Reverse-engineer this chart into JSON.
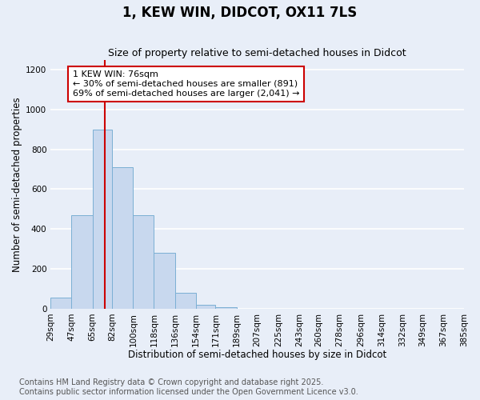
{
  "title": "1, KEW WIN, DIDCOT, OX11 7LS",
  "subtitle": "Size of property relative to semi-detached houses in Didcot",
  "xlabel": "Distribution of semi-detached houses by size in Didcot",
  "ylabel": "Number of semi-detached properties",
  "bar_labels": [
    "29sqm",
    "47sqm",
    "65sqm",
    "82sqm",
    "100sqm",
    "118sqm",
    "136sqm",
    "154sqm",
    "171sqm",
    "189sqm",
    "207sqm",
    "225sqm",
    "243sqm",
    "260sqm",
    "278sqm",
    "296sqm",
    "314sqm",
    "332sqm",
    "349sqm",
    "367sqm",
    "385sqm"
  ],
  "bar_values": [
    55,
    470,
    900,
    710,
    470,
    280,
    80,
    18,
    8,
    0,
    0,
    0,
    0,
    0,
    0,
    0,
    0,
    0,
    0,
    0,
    0
  ],
  "bar_color": "#c8d8ee",
  "bar_edge_color": "#7bafd4",
  "property_line_x": 76,
  "bin_edges": [
    29,
    47,
    65,
    82,
    100,
    118,
    136,
    154,
    171,
    189,
    207,
    225,
    243,
    260,
    278,
    296,
    314,
    332,
    349,
    367,
    385
  ],
  "annotation_text": "1 KEW WIN: 76sqm\n← 30% of semi-detached houses are smaller (891)\n69% of semi-detached houses are larger (2,041) →",
  "annotation_box_color": "#ffffff",
  "annotation_box_edge_color": "#cc0000",
  "vline_color": "#cc0000",
  "ylim": [
    0,
    1250
  ],
  "yticks": [
    0,
    200,
    400,
    600,
    800,
    1000,
    1200
  ],
  "footer_line1": "Contains HM Land Registry data © Crown copyright and database right 2025.",
  "footer_line2": "Contains public sector information licensed under the Open Government Licence v3.0.",
  "background_color": "#e8eef8",
  "plot_bg_color": "#e8eef8",
  "grid_color": "#ffffff",
  "title_fontsize": 12,
  "subtitle_fontsize": 9,
  "axis_label_fontsize": 8.5,
  "tick_fontsize": 7.5,
  "footer_fontsize": 7,
  "annotation_fontsize": 8
}
